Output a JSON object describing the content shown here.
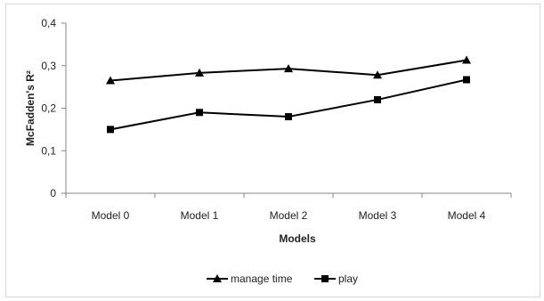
{
  "chart_data": {
    "type": "line",
    "categories": [
      "Model 0",
      "Model 1",
      "Model 2",
      "Model 3",
      "Model 4"
    ],
    "series": [
      {
        "name": "manage time",
        "marker": "triangle",
        "values": [
          0.265,
          0.283,
          0.293,
          0.278,
          0.313
        ]
      },
      {
        "name": "play",
        "marker": "square",
        "values": [
          0.15,
          0.19,
          0.18,
          0.22,
          0.267
        ]
      }
    ],
    "xlabel": "Models",
    "ylabel": "McFadden's R²",
    "ylim": [
      0,
      0.4
    ],
    "yticks": [
      {
        "value": 0,
        "label": "0"
      },
      {
        "value": 0.1,
        "label": "0,1"
      },
      {
        "value": 0.2,
        "label": "0,2"
      },
      {
        "value": 0.3,
        "label": "0,3"
      },
      {
        "value": 0.4,
        "label": "0,4"
      }
    ],
    "grid": false,
    "legend": "bottom",
    "line_color": "#000000"
  }
}
